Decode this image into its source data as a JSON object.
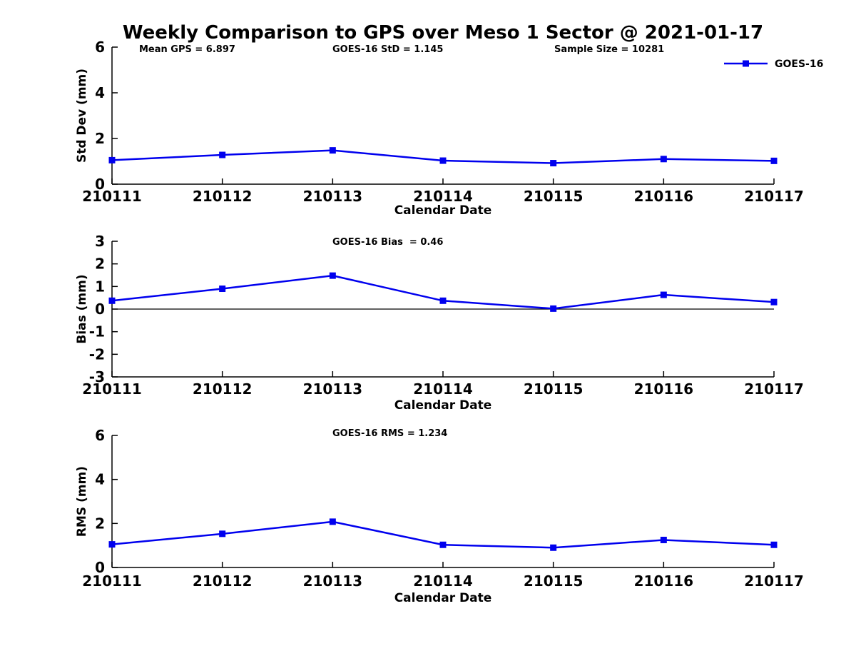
{
  "figure": {
    "title": "Weekly Comparison to GPS over Meso 1 Sector @ 2021-01-17",
    "legend": {
      "label": "GOES-16",
      "series_color": "#0000EE",
      "marker": "square",
      "position": "top-right"
    }
  },
  "chart_data": [
    {
      "id": "std-dev",
      "type": "line",
      "annotations": [
        "Mean GPS = 6.897",
        "GOES-16 StD = 1.145",
        "Sample Size = 10281"
      ],
      "categories": [
        "210111",
        "210112",
        "210113",
        "210114",
        "210115",
        "210116",
        "210117"
      ],
      "series": [
        {
          "name": "GOES-16",
          "values": [
            1.05,
            1.28,
            1.48,
            1.03,
            0.92,
            1.1,
            1.02
          ]
        }
      ],
      "xlabel": "Calendar Date",
      "ylabel": "Std Dev (mm)",
      "ylim": [
        0,
        6
      ],
      "yticks": [
        0,
        2,
        4,
        6
      ],
      "zero_line": false,
      "grid": false
    },
    {
      "id": "bias",
      "type": "line",
      "annotations": [
        "GOES-16 Bias  = 0.46"
      ],
      "categories": [
        "210111",
        "210112",
        "210113",
        "210114",
        "210115",
        "210116",
        "210117"
      ],
      "series": [
        {
          "name": "GOES-16",
          "values": [
            0.37,
            0.9,
            1.48,
            0.37,
            0.02,
            0.63,
            0.31
          ]
        }
      ],
      "xlabel": "Calendar Date",
      "ylabel": "Bias (mm)",
      "ylim": [
        -3,
        3
      ],
      "yticks": [
        -3,
        -2,
        -1,
        0,
        1,
        2,
        3
      ],
      "zero_line": true,
      "grid": false
    },
    {
      "id": "rms",
      "type": "line",
      "annotations": [
        "GOES-16 RMS = 1.234"
      ],
      "categories": [
        "210111",
        "210112",
        "210113",
        "210114",
        "210115",
        "210116",
        "210117"
      ],
      "series": [
        {
          "name": "GOES-16",
          "values": [
            1.05,
            1.53,
            2.08,
            1.03,
            0.9,
            1.25,
            1.03
          ]
        }
      ],
      "xlabel": "Calendar Date",
      "ylabel": "RMS (mm)",
      "ylim": [
        0,
        6
      ],
      "yticks": [
        0,
        2,
        4,
        6
      ],
      "zero_line": false,
      "grid": false
    }
  ]
}
